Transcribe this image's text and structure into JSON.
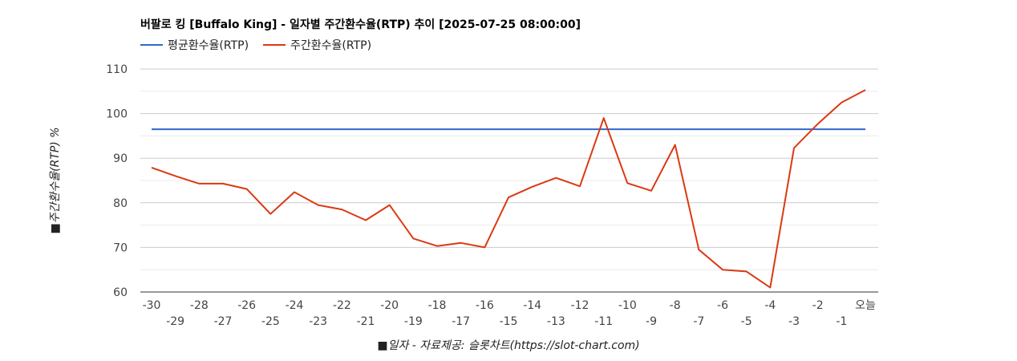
{
  "chart_data": {
    "type": "line",
    "title": "버팔로 킹 [Buffalo King] - 일자별 주간환수율(RTP) 추이 [2025-07-25 08:00:00]",
    "ylabel": "■주간환수율(RTP) %",
    "xlabel": "■일자 - 자료제공: 슬롯차트(https://slot-chart.com)",
    "ylim": [
      60,
      110
    ],
    "yticks": [
      60,
      70,
      80,
      90,
      100,
      110
    ],
    "grid": true,
    "legend_position": "top-left",
    "categories": [
      "-30",
      "-29",
      "-28",
      "-27",
      "-26",
      "-25",
      "-24",
      "-23",
      "-22",
      "-21",
      "-20",
      "-19",
      "-18",
      "-17",
      "-16",
      "-15",
      "-14",
      "-13",
      "-12",
      "-11",
      "-10",
      "-9",
      "-8",
      "-7",
      "-6",
      "-5",
      "-4",
      "-3",
      "-2",
      "-1",
      "오늘"
    ],
    "series": [
      {
        "name": "평균환수율(RTP)",
        "color": "#3366cc",
        "values": [
          96.5,
          96.5,
          96.5,
          96.5,
          96.5,
          96.5,
          96.5,
          96.5,
          96.5,
          96.5,
          96.5,
          96.5,
          96.5,
          96.5,
          96.5,
          96.5,
          96.5,
          96.5,
          96.5,
          96.5,
          96.5,
          96.5,
          96.5,
          96.5,
          96.5,
          96.5,
          96.5,
          96.5,
          96.5,
          96.5,
          96.5
        ]
      },
      {
        "name": "주간환수율(RTP)",
        "color": "#dc3912",
        "values": [
          87.9,
          86.0,
          84.3,
          84.3,
          83.1,
          77.5,
          82.4,
          79.5,
          78.5,
          76.1,
          79.5,
          72.0,
          70.3,
          71.0,
          70.0,
          81.2,
          83.6,
          85.6,
          83.7,
          99.0,
          84.4,
          82.7,
          93.0,
          69.5,
          65.0,
          64.6,
          61.0,
          92.3,
          97.7,
          102.5,
          105.3
        ]
      }
    ]
  }
}
